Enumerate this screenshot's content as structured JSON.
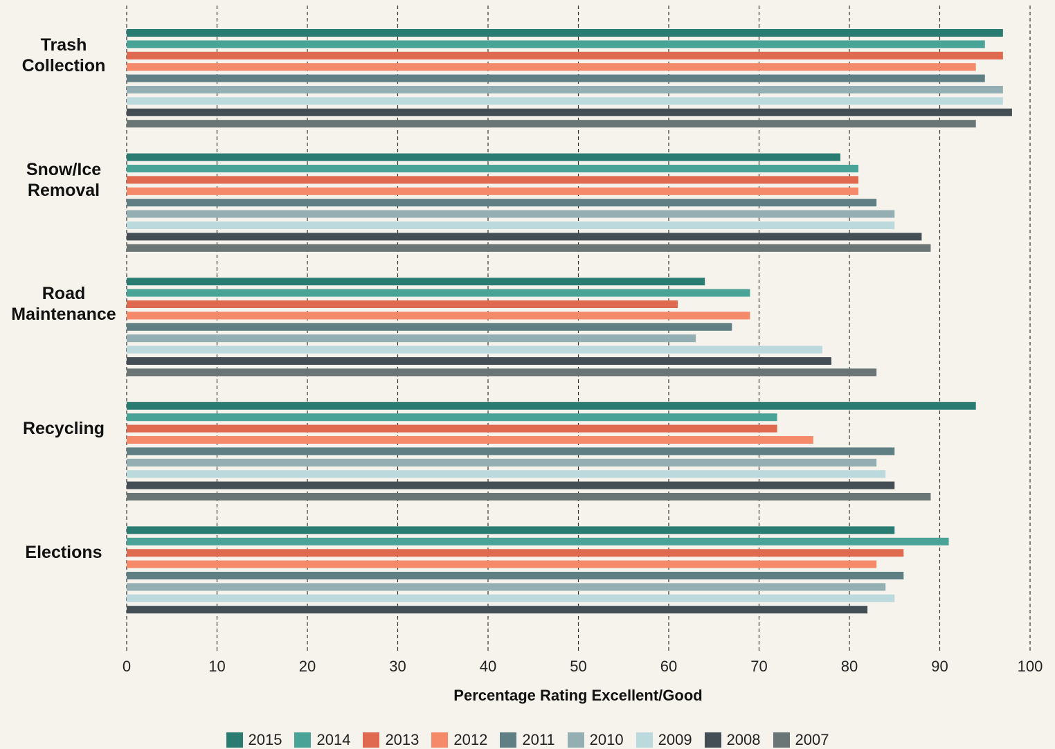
{
  "chart_data": {
    "type": "bar",
    "orientation": "horizontal",
    "x_axis_label": "Percentage Rating Excellent/Good",
    "categories": [
      "Trash Collection",
      "Snow/Ice Removal",
      "Road Maintenance",
      "Recycling",
      "Elections"
    ],
    "series": [
      {
        "name": "2015",
        "color": "#2a7b72",
        "values": [
          97,
          79,
          64,
          94,
          85
        ]
      },
      {
        "name": "2014",
        "color": "#4aa397",
        "values": [
          95,
          81,
          69,
          72,
          91
        ]
      },
      {
        "name": "2013",
        "color": "#e06a4f",
        "values": [
          97,
          81,
          61,
          72,
          86
        ]
      },
      {
        "name": "2012",
        "color": "#f58a6a",
        "values": [
          94,
          81,
          69,
          76,
          83
        ]
      },
      {
        "name": "2011",
        "color": "#5f7f84",
        "values": [
          95,
          83,
          67,
          85,
          86
        ]
      },
      {
        "name": "2010",
        "color": "#94afb3",
        "values": [
          97,
          85,
          63,
          83,
          84
        ]
      },
      {
        "name": "2009",
        "color": "#bcd9de",
        "values": [
          97,
          85,
          77,
          84,
          85
        ]
      },
      {
        "name": "2008",
        "color": "#434f55",
        "values": [
          98,
          88,
          78,
          85,
          82
        ]
      },
      {
        "name": "2007",
        "color": "#6a7676",
        "values": [
          94,
          89,
          83,
          89,
          null
        ]
      }
    ],
    "xlim": [
      0,
      100
    ],
    "xticks": [
      0,
      10,
      20,
      30,
      40,
      50,
      60,
      70,
      80,
      90,
      100
    ],
    "grid": true
  }
}
